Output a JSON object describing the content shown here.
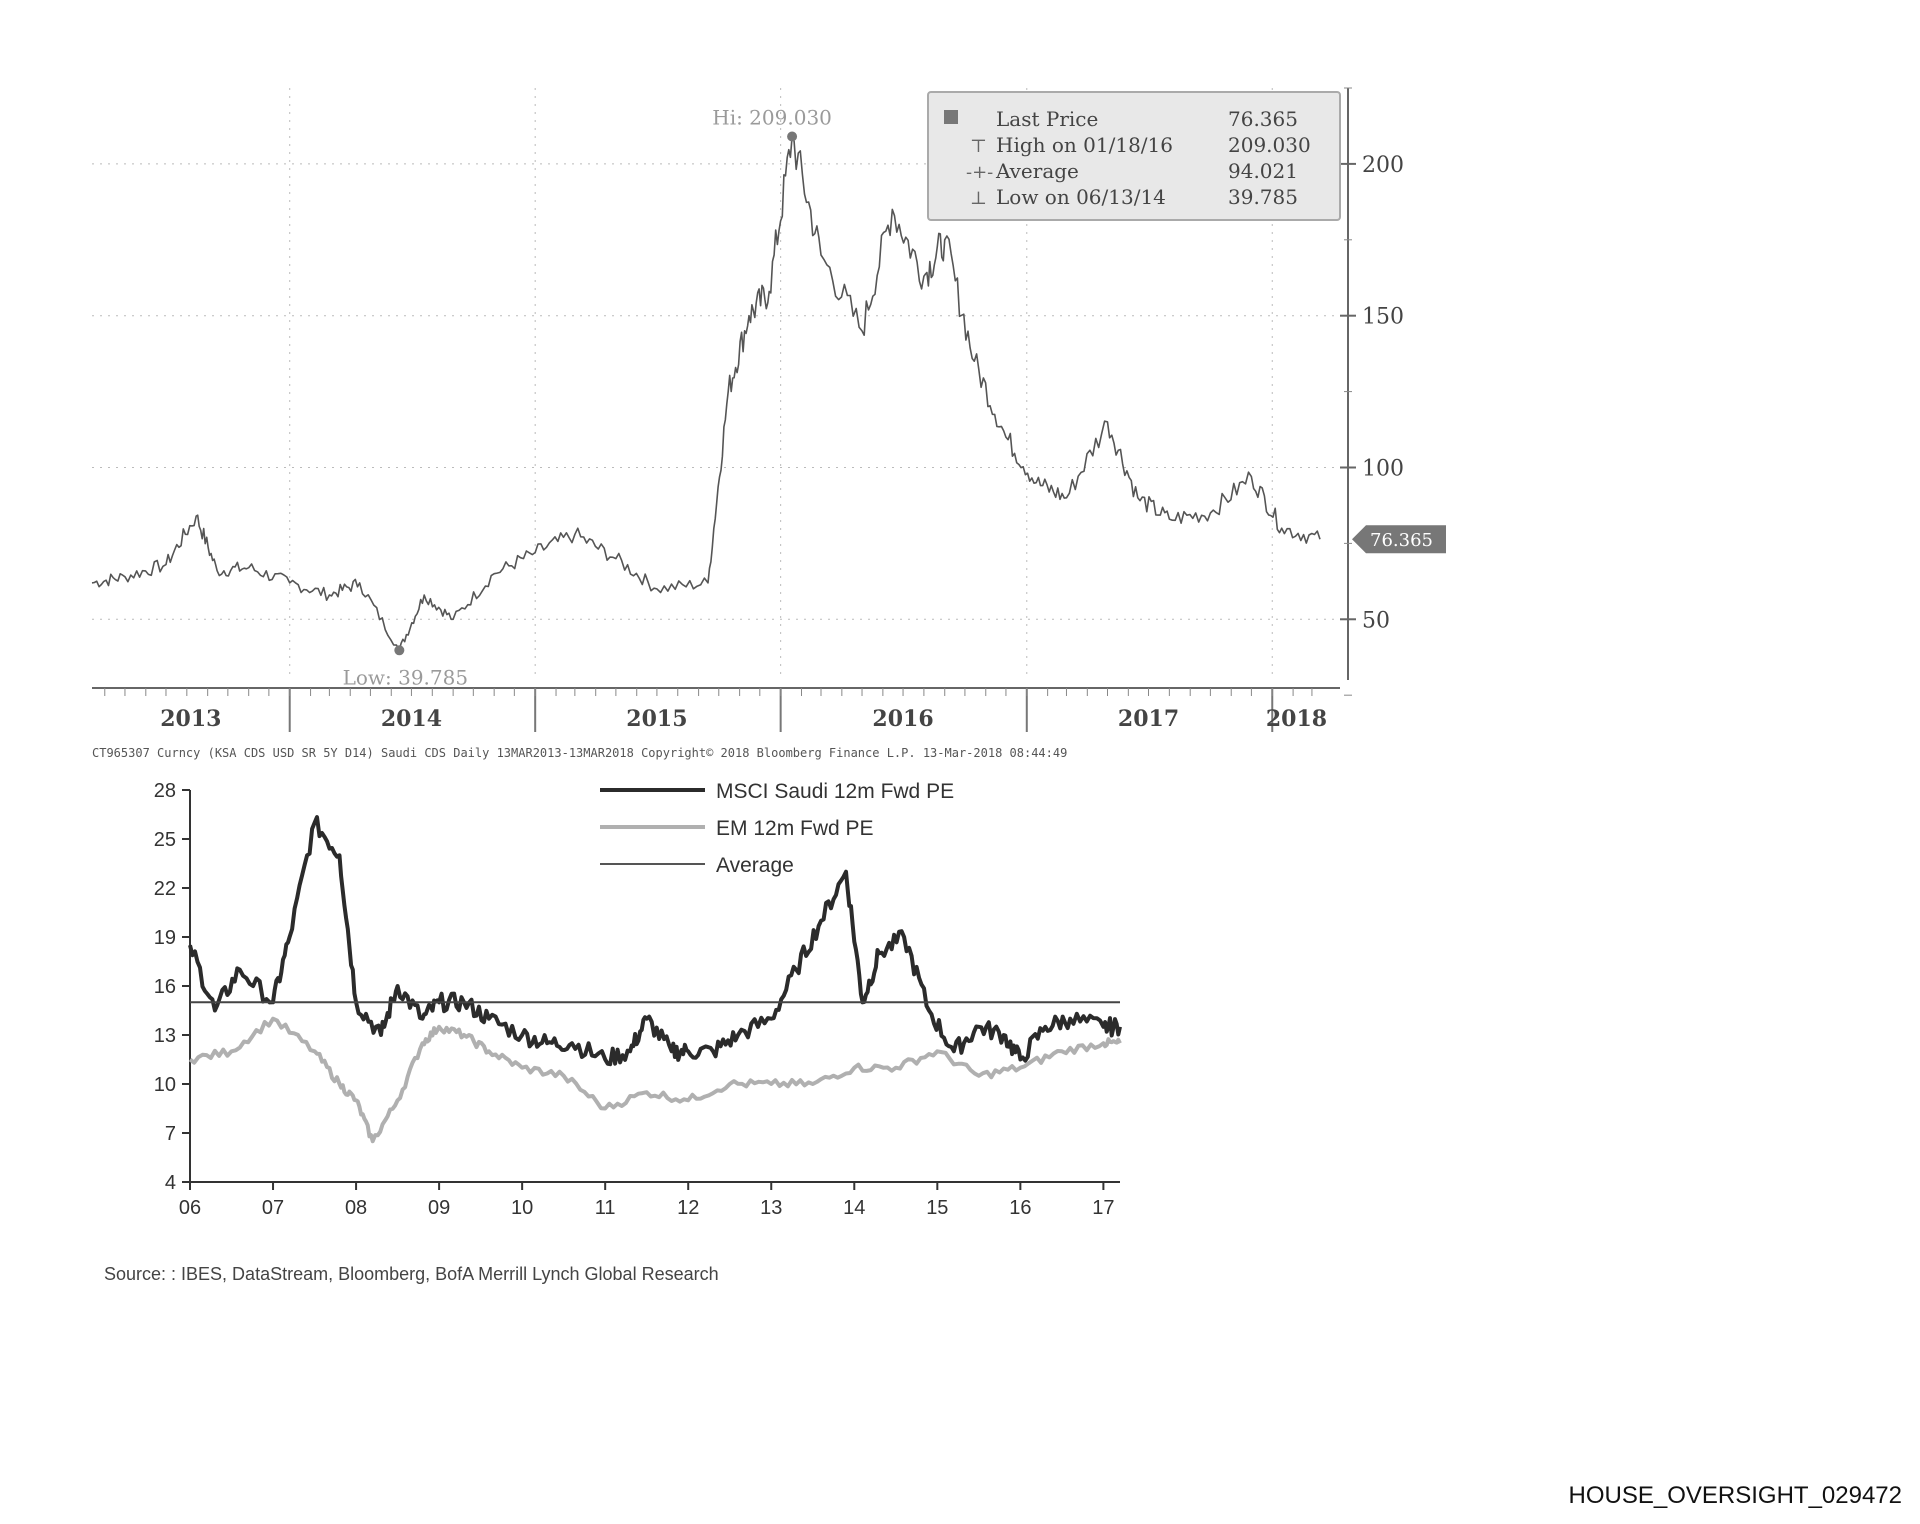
{
  "chart_data": [
    {
      "type": "line",
      "title": "",
      "xlabel": "",
      "ylabel": "",
      "x_ticks": [
        "2013",
        "2014",
        "2015",
        "2016",
        "2017",
        "2018"
      ],
      "y_ticks": [
        50,
        100,
        150,
        200
      ],
      "ylim": [
        30,
        225
      ],
      "xlim": [
        "2013-03-13",
        "2018-03-13"
      ],
      "grid": true,
      "legend_position": "top-right",
      "legend": [
        {
          "label": "Last Price",
          "value": "76.365"
        },
        {
          "label": "High on 01/18/16",
          "value": "209.030"
        },
        {
          "label": "Average",
          "value": "94.021"
        },
        {
          "label": "Low on 06/13/14",
          "value": "39.785"
        }
      ],
      "annotations": {
        "high_label": "Hi: 209.030",
        "low_label": "Low: 39.785",
        "last_price_tag": "76.365"
      },
      "high_point": {
        "date": "2016-01-18",
        "value": 209.03
      },
      "low_point": {
        "date": "2014-06-13",
        "value": 39.785
      },
      "series": [
        {
          "x": [
            "2013-03-13",
            "2013-05-01",
            "2013-07-01",
            "2013-08-15",
            "2013-09-15",
            "2013-11-01",
            "2014-01-01",
            "2014-03-01",
            "2014-04-15",
            "2014-06-13",
            "2014-07-20",
            "2014-09-01",
            "2014-11-01",
            "2015-01-01",
            "2015-03-01",
            "2015-05-01",
            "2015-07-01",
            "2015-09-15",
            "2015-10-15",
            "2015-11-15",
            "2015-12-15",
            "2016-01-18",
            "2016-03-01",
            "2016-05-01",
            "2016-06-15",
            "2016-08-01",
            "2016-09-01",
            "2016-10-15",
            "2016-12-01",
            "2017-01-15",
            "2017-03-01",
            "2017-05-01",
            "2017-06-15",
            "2017-08-01",
            "2017-10-01",
            "2017-12-01",
            "2018-01-15",
            "2018-03-13"
          ],
          "values": [
            62,
            64,
            68,
            84,
            66,
            67,
            62,
            58,
            62,
            39.785,
            58,
            50,
            65,
            72,
            78,
            70,
            60,
            62,
            125,
            150,
            158,
            209.03,
            170,
            145,
            185,
            163,
            175,
            135,
            110,
            95,
            90,
            115,
            90,
            83,
            85,
            97,
            80,
            76.365
          ]
        }
      ],
      "source": "CT965307 Curncy (KSA CDS USD SR 5Y D14) Saudi CDS Daily 13MAR2013-13MAR2018 Copyright© 2018 Bloomberg Finance L.P. 13-Mar-2018 08:44:49"
    },
    {
      "type": "line",
      "title": "",
      "xlabel": "",
      "ylabel": "",
      "categories": [
        "06",
        "07",
        "08",
        "09",
        "10",
        "11",
        "12",
        "13",
        "14",
        "15",
        "16",
        "17"
      ],
      "y_ticks": [
        4,
        7,
        10,
        13,
        16,
        19,
        22,
        25,
        28
      ],
      "ylim": [
        4,
        28
      ],
      "xlim": [
        2006.0,
        2017.2
      ],
      "legend_position": "top-center",
      "series": [
        {
          "name": "MSCI Saudi 12m Fwd PE",
          "x": [
            2006.0,
            2006.3,
            2006.6,
            2007.0,
            2007.2,
            2007.5,
            2007.8,
            2008.0,
            2008.3,
            2008.5,
            2008.8,
            2009.0,
            2009.3,
            2009.6,
            2010.0,
            2010.3,
            2010.6,
            2011.0,
            2011.3,
            2011.5,
            2011.8,
            2012.0,
            2012.3,
            2012.6,
            2013.0,
            2013.3,
            2013.6,
            2013.9,
            2014.1,
            2014.3,
            2014.6,
            2014.9,
            2015.2,
            2015.5,
            2015.8,
            2016.0,
            2016.3,
            2016.6,
            2017.0,
            2017.2
          ],
          "values": [
            18.5,
            14.5,
            17,
            15,
            19,
            26,
            24,
            15,
            13,
            16,
            14,
            15,
            15,
            14,
            13,
            12.5,
            12.5,
            11.5,
            12,
            14,
            12,
            12,
            12,
            13,
            14,
            17,
            20,
            23,
            15,
            18,
            19,
            14.5,
            12,
            13.5,
            13,
            11.5,
            13.5,
            14,
            13.5,
            13.5
          ]
        },
        {
          "name": "EM 12m Fwd PE",
          "x": [
            2006.0,
            2006.5,
            2007.0,
            2007.5,
            2007.8,
            2008.0,
            2008.2,
            2008.5,
            2008.8,
            2009.0,
            2009.3,
            2009.6,
            2010.0,
            2010.5,
            2011.0,
            2011.5,
            2012.0,
            2012.5,
            2013.0,
            2013.5,
            2014.0,
            2014.5,
            2015.0,
            2015.5,
            2016.0,
            2016.5,
            2017.0,
            2017.2
          ],
          "values": [
            11.5,
            12,
            14,
            12,
            10,
            9,
            6.5,
            9,
            12.5,
            13.5,
            13,
            12,
            11,
            10.5,
            8.5,
            9.5,
            9,
            10,
            10,
            10,
            11,
            11,
            12,
            10.5,
            11,
            12,
            12.5,
            12.5
          ]
        },
        {
          "name": "Average",
          "x": [
            2006.0,
            2017.2
          ],
          "values": [
            15.0,
            15.0
          ]
        }
      ],
      "source": "Source: : IBES, DataStream, Bloomberg, BofA Merrill Lynch Global Research"
    }
  ],
  "page_id": "HOUSE_OVERSIGHT_029472"
}
